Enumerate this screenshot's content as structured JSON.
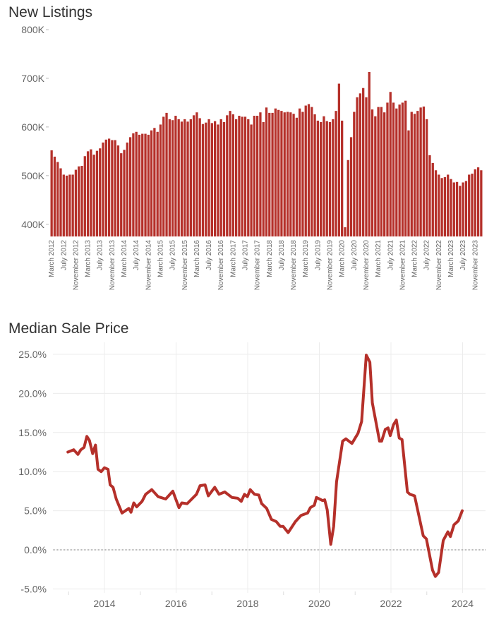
{
  "chart_data": [
    {
      "type": "bar",
      "title": "New Listings",
      "xlabel": "",
      "ylabel": "",
      "ylim": [
        375000,
        800000
      ],
      "yticks": [
        400000,
        500000,
        600000,
        700000,
        800000
      ],
      "ytick_labels": [
        "400K",
        "500K",
        "600K",
        "700K",
        "800K"
      ],
      "color": "#b5302a",
      "first_month": "March 2012",
      "tick_every": 4,
      "tick_labels": [
        "March 2012",
        "July 2012",
        "November 2012",
        "March 2013",
        "July 2013",
        "November 2013",
        "March 2014",
        "July 2014",
        "November 2014",
        "March 2015",
        "July 2015",
        "November 2015",
        "March 2016",
        "July 2016",
        "November 2016",
        "March 2017",
        "July 2017",
        "November 2017",
        "March 2018",
        "July 2018",
        "November 2018",
        "March 2019",
        "July 2019",
        "November 2019",
        "March 2020",
        "July 2020",
        "November 2020",
        "March 2021",
        "July 2021",
        "November 2021",
        "March 2022",
        "July 2022",
        "November 2022",
        "March 2023",
        "July 2023",
        "November 2023"
      ],
      "values": [
        552000,
        539000,
        528000,
        515000,
        502000,
        500000,
        502000,
        502000,
        512000,
        519000,
        520000,
        540000,
        550000,
        554000,
        543000,
        551000,
        556000,
        568000,
        574000,
        576000,
        573000,
        573000,
        562000,
        546000,
        553000,
        568000,
        579000,
        587000,
        590000,
        584000,
        586000,
        586000,
        584000,
        593000,
        598000,
        590000,
        605000,
        621000,
        629000,
        616000,
        614000,
        623000,
        616000,
        611000,
        616000,
        611000,
        616000,
        624000,
        630000,
        618000,
        606000,
        609000,
        616000,
        608000,
        612000,
        605000,
        616000,
        610000,
        624000,
        633000,
        626000,
        616000,
        623000,
        621000,
        621000,
        616000,
        605000,
        623000,
        623000,
        630000,
        610000,
        640000,
        629000,
        629000,
        638000,
        635000,
        633000,
        630000,
        631000,
        630000,
        627000,
        619000,
        638000,
        631000,
        644000,
        647000,
        641000,
        626000,
        613000,
        610000,
        622000,
        612000,
        610000,
        616000,
        633000,
        689000,
        613000,
        394000,
        532000,
        579000,
        631000,
        661000,
        669000,
        680000,
        661000,
        713000,
        636000,
        622000,
        641000,
        641000,
        630000,
        650000,
        672000,
        650000,
        638000,
        646000,
        650000,
        654000,
        593000,
        631000,
        627000,
        633000,
        640000,
        642000,
        616000,
        542000,
        526000,
        511000,
        502000,
        495000,
        497000,
        502000,
        493000,
        486000,
        487000,
        479000,
        486000,
        489000,
        502000,
        504000,
        513000,
        517000,
        511000
      ]
    },
    {
      "type": "line",
      "title": "Median Sale Price",
      "xlabel": "",
      "ylabel": "",
      "xlim": [
        2012.5,
        2024.6
      ],
      "ylim": [
        -6,
        26.5
      ],
      "xticks": [
        2014,
        2016,
        2018,
        2020,
        2022,
        2024
      ],
      "xtick_labels": [
        "2014",
        "2016",
        "2018",
        "2020",
        "2022",
        "2024"
      ],
      "yticks": [
        -5,
        0,
        5,
        10,
        15,
        20,
        25
      ],
      "ytick_labels": [
        "-5.0%",
        "0.0%",
        "5.0%",
        "10.0%",
        "15.0%",
        "20.0%",
        "25.0%"
      ],
      "color": "#b5302a",
      "grid": true,
      "zero_line": true,
      "series": [
        {
          "name": "Median Sale Price YoY %",
          "points": [
            [
              2012.98,
              12.5
            ],
            [
              2013.14,
              12.8
            ],
            [
              2013.26,
              12.2
            ],
            [
              2013.34,
              12.8
            ],
            [
              2013.43,
              13.1
            ],
            [
              2013.51,
              14.5
            ],
            [
              2013.58,
              14.0
            ],
            [
              2013.67,
              12.3
            ],
            [
              2013.75,
              13.4
            ],
            [
              2013.82,
              10.3
            ],
            [
              2013.91,
              10.0
            ],
            [
              2014.0,
              10.5
            ],
            [
              2014.1,
              10.3
            ],
            [
              2014.16,
              8.3
            ],
            [
              2014.24,
              8.0
            ],
            [
              2014.33,
              6.5
            ],
            [
              2014.49,
              4.7
            ],
            [
              2014.68,
              5.3
            ],
            [
              2014.74,
              4.8
            ],
            [
              2014.82,
              6.0
            ],
            [
              2014.9,
              5.5
            ],
            [
              2015.05,
              6.2
            ],
            [
              2015.15,
              7.1
            ],
            [
              2015.32,
              7.7
            ],
            [
              2015.5,
              6.8
            ],
            [
              2015.71,
              6.5
            ],
            [
              2015.91,
              7.5
            ],
            [
              2016.08,
              5.4
            ],
            [
              2016.16,
              6.0
            ],
            [
              2016.31,
              5.9
            ],
            [
              2016.57,
              7.1
            ],
            [
              2016.67,
              8.2
            ],
            [
              2016.81,
              8.3
            ],
            [
              2016.9,
              6.9
            ],
            [
              2017.08,
              8.0
            ],
            [
              2017.2,
              7.1
            ],
            [
              2017.36,
              7.4
            ],
            [
              2017.56,
              6.7
            ],
            [
              2017.72,
              6.6
            ],
            [
              2017.82,
              6.2
            ],
            [
              2017.91,
              7.1
            ],
            [
              2017.99,
              6.8
            ],
            [
              2018.07,
              7.7
            ],
            [
              2018.19,
              7.1
            ],
            [
              2018.31,
              7.0
            ],
            [
              2018.39,
              5.9
            ],
            [
              2018.53,
              5.3
            ],
            [
              2018.66,
              3.9
            ],
            [
              2018.8,
              3.6
            ],
            [
              2018.91,
              3.0
            ],
            [
              2018.99,
              3.0
            ],
            [
              2019.13,
              2.2
            ],
            [
              2019.33,
              3.6
            ],
            [
              2019.49,
              4.4
            ],
            [
              2019.67,
              4.7
            ],
            [
              2019.75,
              5.4
            ],
            [
              2019.86,
              5.7
            ],
            [
              2019.92,
              6.7
            ],
            [
              2020.09,
              6.3
            ],
            [
              2020.15,
              6.4
            ],
            [
              2020.22,
              5.1
            ],
            [
              2020.32,
              0.7
            ],
            [
              2020.4,
              3.0
            ],
            [
              2020.48,
              8.7
            ],
            [
              2020.65,
              13.9
            ],
            [
              2020.74,
              14.2
            ],
            [
              2020.91,
              13.6
            ],
            [
              2021.08,
              14.9
            ],
            [
              2021.18,
              16.4
            ],
            [
              2021.31,
              24.9
            ],
            [
              2021.41,
              24.0
            ],
            [
              2021.48,
              18.8
            ],
            [
              2021.68,
              13.9
            ],
            [
              2021.74,
              13.9
            ],
            [
              2021.84,
              15.4
            ],
            [
              2021.92,
              15.6
            ],
            [
              2021.98,
              14.6
            ],
            [
              2022.07,
              16.0
            ],
            [
              2022.15,
              16.6
            ],
            [
              2022.23,
              14.3
            ],
            [
              2022.31,
              14.1
            ],
            [
              2022.46,
              7.4
            ],
            [
              2022.53,
              7.1
            ],
            [
              2022.66,
              6.9
            ],
            [
              2022.9,
              1.8
            ],
            [
              2022.99,
              1.4
            ],
            [
              2023.16,
              -2.6
            ],
            [
              2023.24,
              -3.4
            ],
            [
              2023.33,
              -2.9
            ],
            [
              2023.46,
              1.2
            ],
            [
              2023.59,
              2.3
            ],
            [
              2023.66,
              1.7
            ],
            [
              2023.76,
              3.2
            ],
            [
              2023.88,
              3.7
            ],
            [
              2023.99,
              5.0
            ]
          ]
        }
      ]
    }
  ]
}
